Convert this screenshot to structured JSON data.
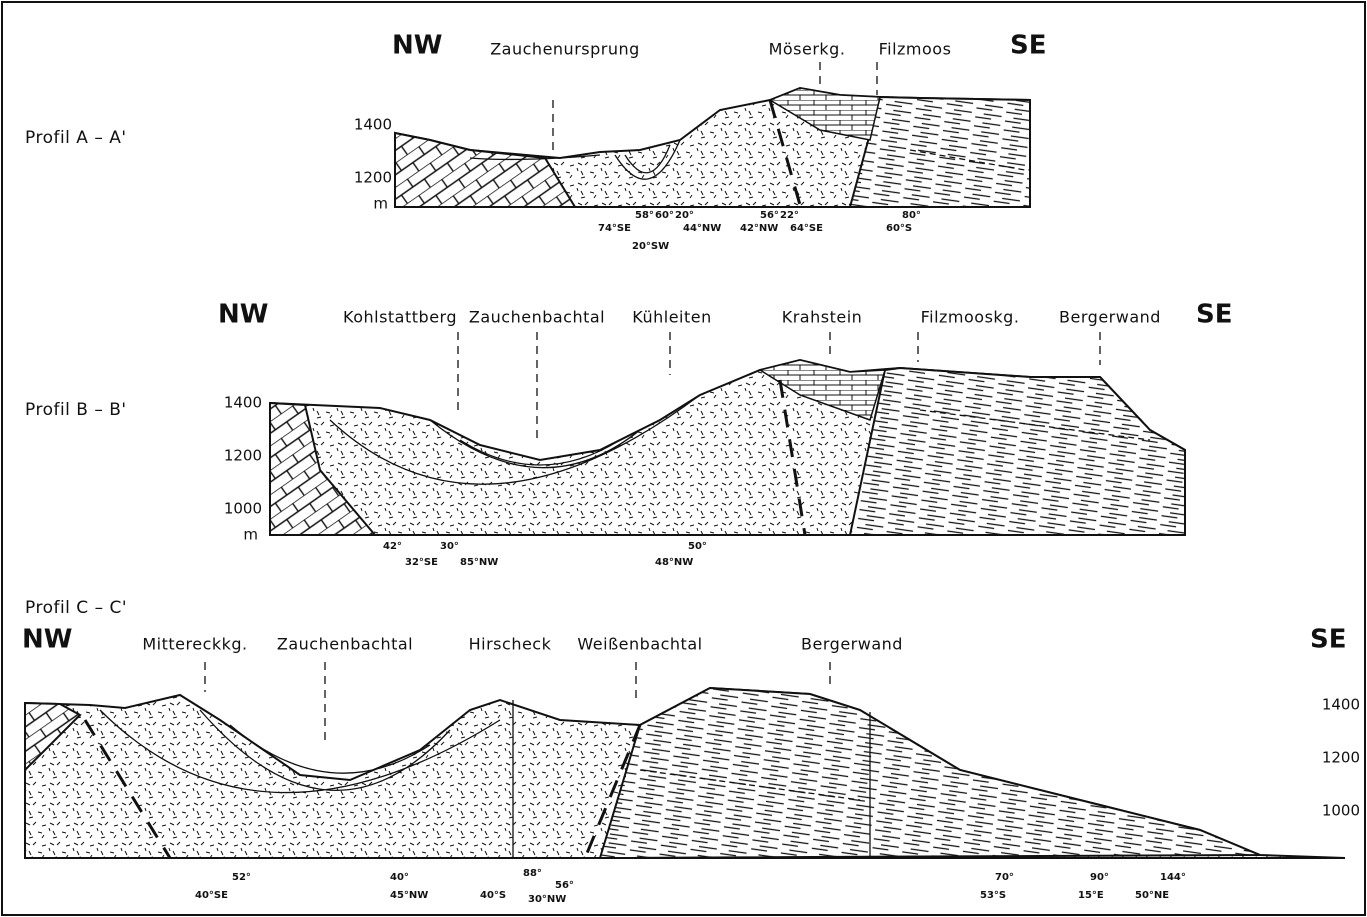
{
  "profiles": [
    {
      "name": "Profil A – A'",
      "left": "NW",
      "right": "SE",
      "places": [
        "Zauchenursprung",
        "Möserkg.",
        "Filzmoos"
      ],
      "elevations": [
        "1400",
        "1200",
        "m"
      ],
      "measurements": [
        "58°",
        "60°",
        "20°",
        "74°SE",
        "20°SW",
        "44°NW",
        "56°",
        "22°",
        "42°NW",
        "64°SE",
        "80°",
        "60°S"
      ]
    },
    {
      "name": "Profil B – B'",
      "left": "NW",
      "right": "SE",
      "places": [
        "Kohlstattberg",
        "Zauchenbachtal",
        "Kühleiten",
        "Krahstein",
        "Filzmooskg.",
        "Bergerwand"
      ],
      "elevations": [
        "1400",
        "1200",
        "1000",
        "m"
      ],
      "measurements": [
        "42°",
        "30°",
        "32°SE",
        "85°NW",
        "50°",
        "48°NW"
      ]
    },
    {
      "name": "Profil C – C'",
      "left": "NW",
      "right": "SE",
      "places": [
        "Mittereckkg.",
        "Zauchenbachtal",
        "Hirscheck",
        "Weißenbachtal",
        "Bergerwand"
      ],
      "elevations": [
        "1400",
        "1200",
        "1000"
      ],
      "measurements": [
        "52°",
        "40°SE",
        "40°",
        "45°NW",
        "88°",
        "56°",
        "40°S",
        "30°NW",
        "70°",
        "53°S",
        "90°",
        "15°E",
        "144°",
        "50°NE"
      ]
    }
  ]
}
